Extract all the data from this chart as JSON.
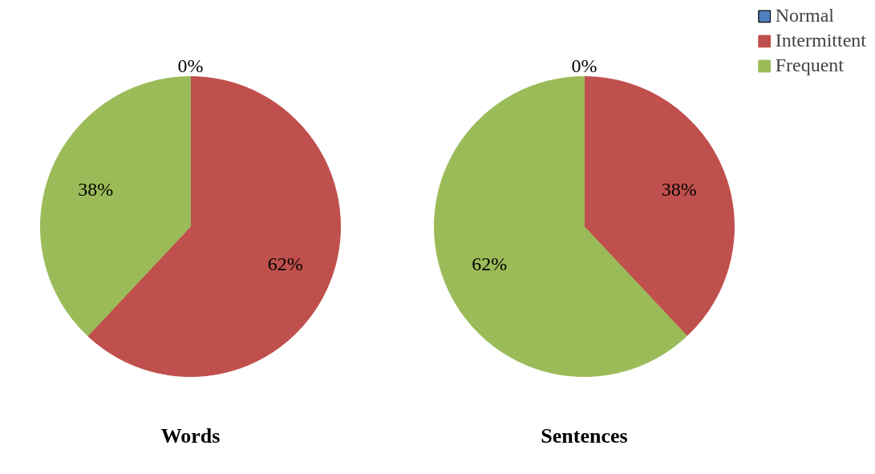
{
  "chart_data": {
    "type": "pie",
    "categories": [
      "Normal",
      "Intermittent",
      "Frequent"
    ],
    "colors": [
      "#4f81bd",
      "#c0504d",
      "#9bbb59"
    ],
    "legend": "top right",
    "series": [
      {
        "name": "Words",
        "values": [
          0,
          62,
          38
        ],
        "value_labels": [
          "0%",
          "62%",
          "38%"
        ]
      },
      {
        "name": "Sentences",
        "values": [
          0,
          38,
          62
        ],
        "value_labels": [
          "0%",
          "38%",
          "62%"
        ]
      }
    ]
  }
}
